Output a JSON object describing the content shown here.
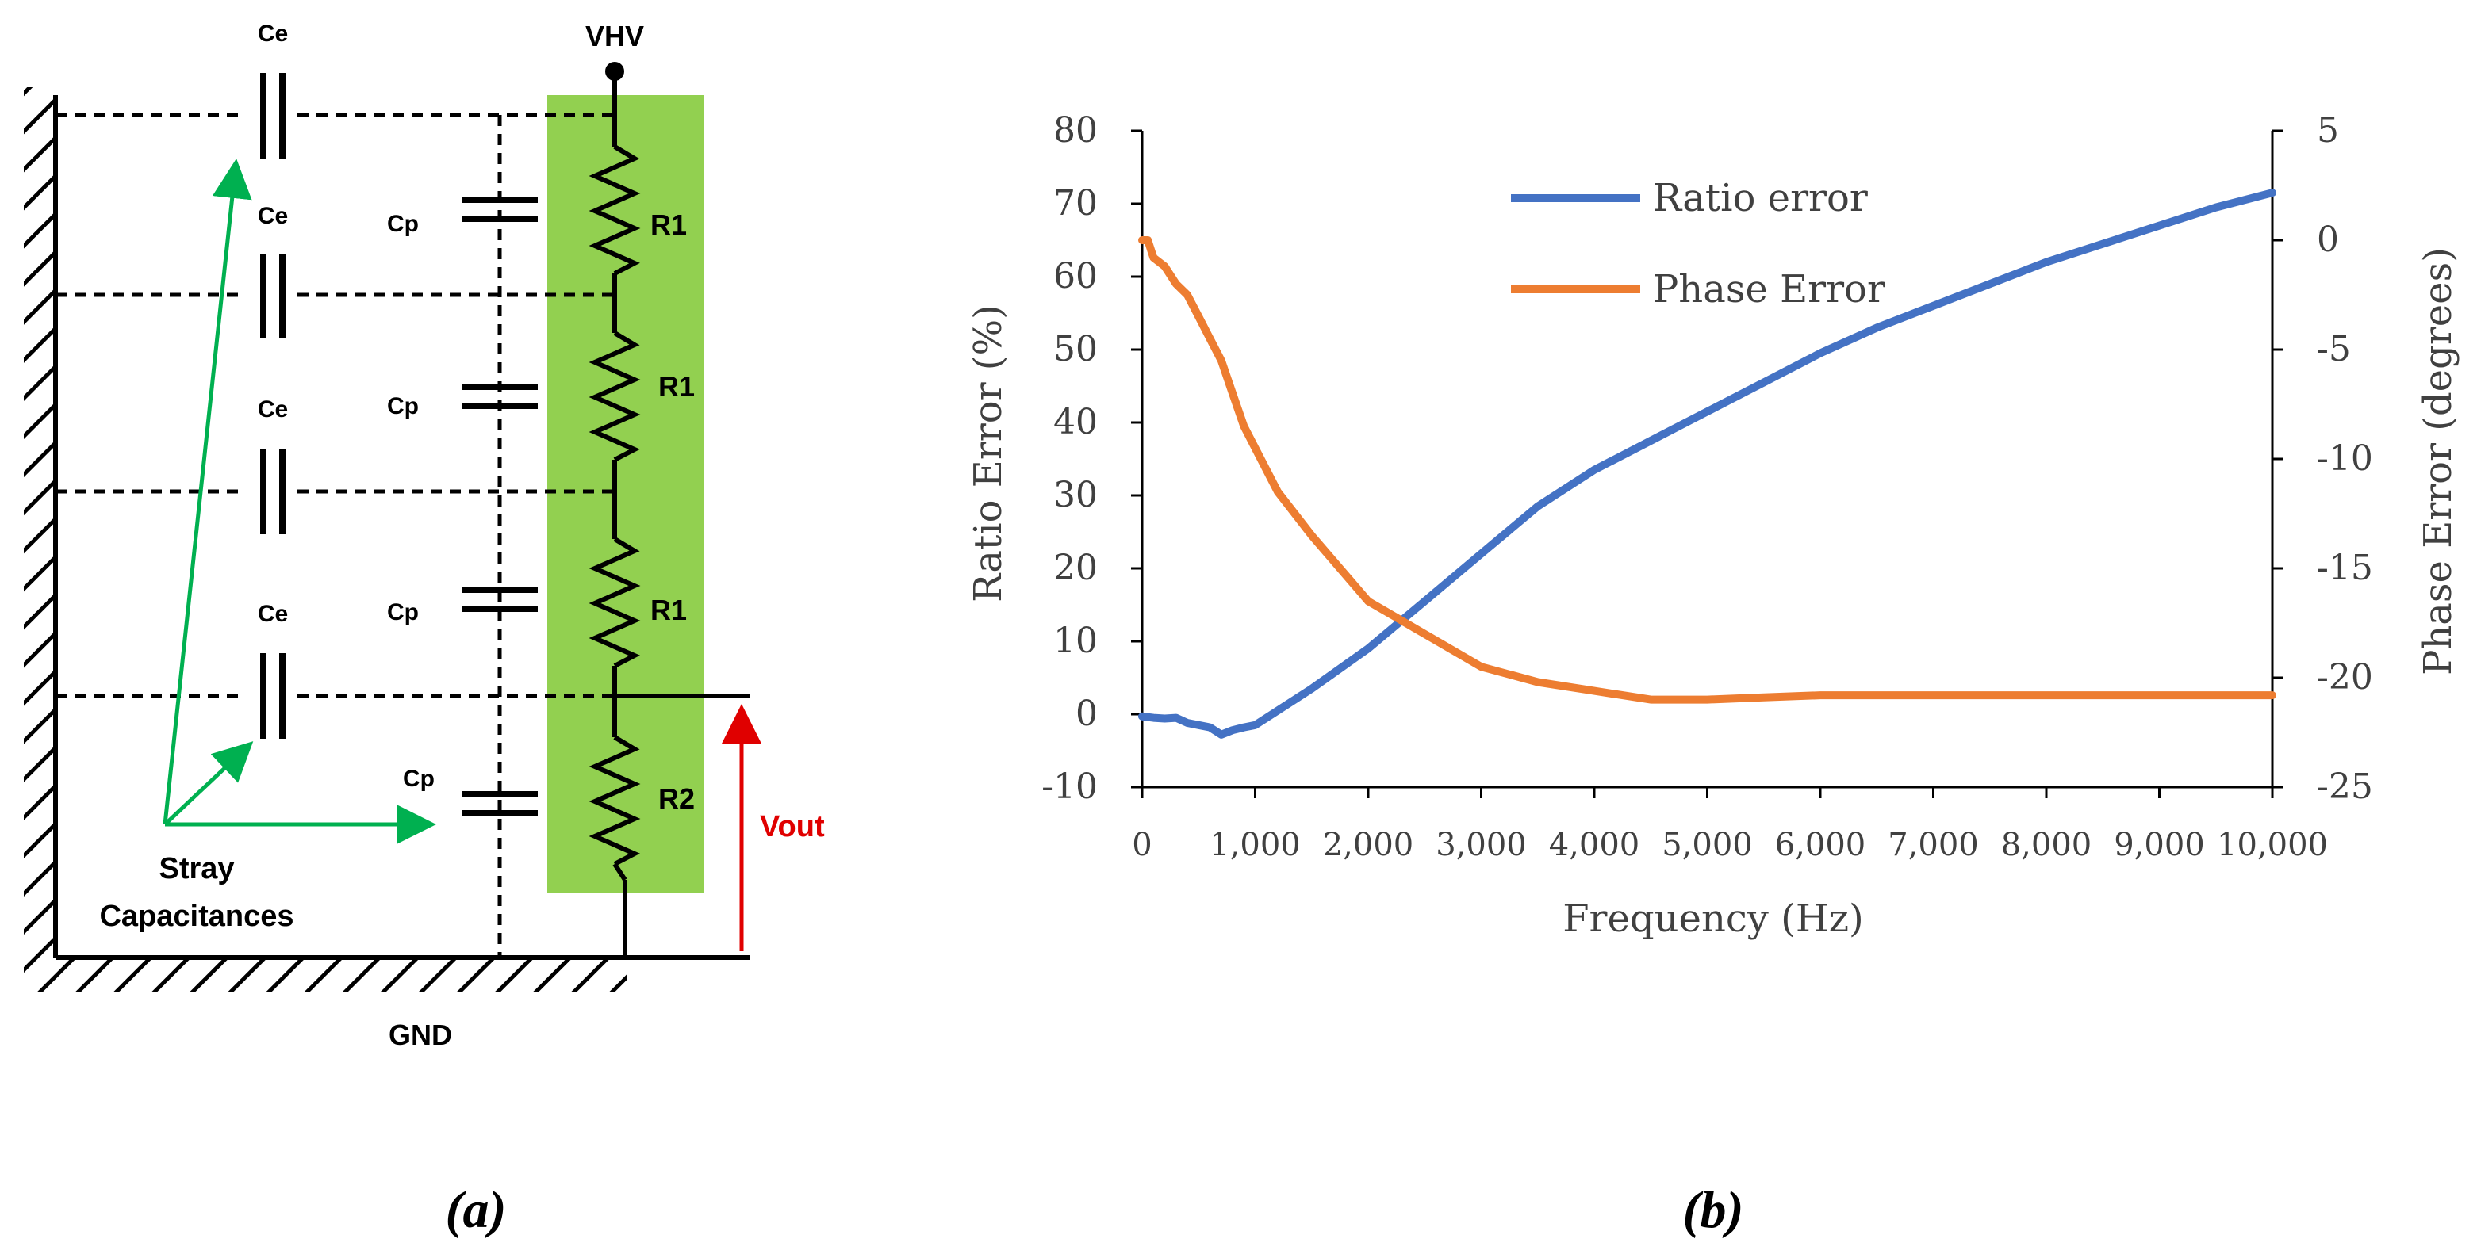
{
  "panel_a": {
    "caption": "(a)",
    "node_top": "VHV",
    "ground": "GND",
    "output": "Vout",
    "stray_title_line1": "Stray",
    "stray_title_line2": "Capacitances",
    "earth_cap_labels": [
      "Ce",
      "Ce",
      "Ce",
      "Ce"
    ],
    "parallel_cap_labels": [
      "Cp",
      "Cp",
      "Cp",
      "Cp"
    ],
    "resistor_labels": [
      "R1",
      "R1",
      "R1",
      "R2"
    ],
    "colors": {
      "divider_box": "#92d050",
      "arrows": "#00b050",
      "output": "#e00000"
    }
  },
  "panel_b": {
    "caption": "(b)",
    "chart_data": {
      "type": "line",
      "xlabel": "Frequency (Hz)",
      "ylabel": "Ratio Error (%)",
      "ylabel2": "Phase Error (degrees)",
      "xlim": [
        0,
        10000
      ],
      "ylim": [
        -10,
        80
      ],
      "ylim2": [
        -25,
        5
      ],
      "xticks": [
        0,
        1000,
        2000,
        3000,
        4000,
        5000,
        6000,
        7000,
        8000,
        9000,
        10000
      ],
      "xtick_labels": [
        "0",
        "1,000",
        "2,000",
        "3,000",
        "4,000",
        "5,000",
        "6,000",
        "7,000",
        "8,000",
        "9,000",
        "10,000"
      ],
      "yticks": [
        -10,
        0,
        10,
        20,
        30,
        40,
        50,
        60,
        70,
        80
      ],
      "ytick_labels": [
        "-10",
        "0",
        "10",
        "20",
        "30",
        "40",
        "50",
        "60",
        "70",
        "80"
      ],
      "yticks2": [
        -25,
        -20,
        -15,
        -10,
        -5,
        0,
        5
      ],
      "ytick2_labels": [
        "-25",
        "-20",
        "-15",
        "-10",
        "-5",
        "0",
        "5"
      ],
      "grid": false,
      "legend_position": "top-center",
      "series": [
        {
          "name": "Ratio error",
          "axis": "left",
          "color": "#4472c4",
          "x": [
            0,
            100,
            200,
            300,
            400,
            500,
            600,
            700,
            800,
            900,
            1000,
            1200,
            1500,
            2000,
            2500,
            3000,
            3500,
            4000,
            4500,
            5000,
            5500,
            6000,
            6500,
            7000,
            7500,
            8000,
            8500,
            9000,
            9500,
            10000
          ],
          "y": [
            -0.3,
            -0.5,
            -0.6,
            -0.5,
            -1.2,
            -1.5,
            -1.8,
            -2.8,
            -2.2,
            -1.8,
            -1.5,
            0.5,
            3.5,
            9,
            15.5,
            22,
            28.5,
            33.5,
            37.5,
            41.5,
            45.5,
            49.5,
            53,
            56,
            59,
            62,
            64.5,
            67,
            69.5,
            71.5
          ]
        },
        {
          "name": "Phase Error",
          "axis": "right",
          "color": "#ed7d31",
          "x": [
            0,
            50,
            100,
            200,
            300,
            400,
            500,
            600,
            700,
            800,
            900,
            1000,
            1200,
            1500,
            2000,
            2500,
            3000,
            3500,
            4000,
            4500,
            5000,
            5500,
            6000,
            7000,
            8000,
            9000,
            10000
          ],
          "y": [
            0.0,
            0.0,
            -0.8,
            -1.2,
            -2.0,
            -2.5,
            -3.5,
            -4.5,
            -5.5,
            -7.0,
            -8.5,
            -9.5,
            -11.5,
            -13.5,
            -16.5,
            -18.0,
            -19.5,
            -20.2,
            -20.6,
            -21.0,
            -21.0,
            -20.9,
            -20.8,
            -20.8,
            -20.8,
            -20.8,
            -20.8
          ]
        }
      ]
    }
  }
}
